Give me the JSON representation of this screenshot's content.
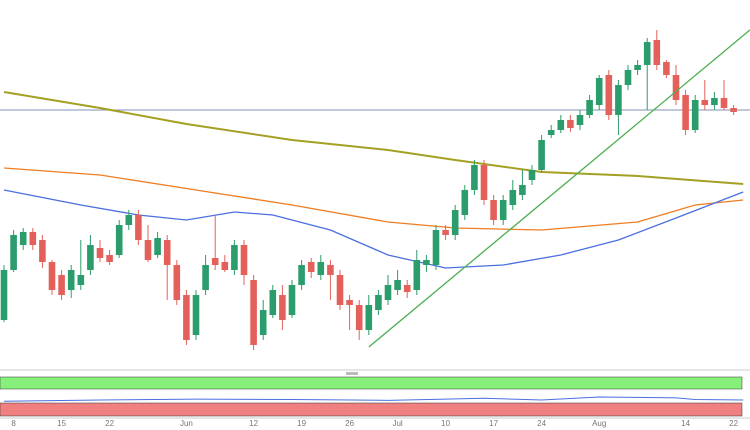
{
  "chart_data": [
    {
      "type": "candlestick",
      "categories": [
        null,
        "8",
        null,
        null,
        null,
        null,
        "15",
        null,
        null,
        null,
        null,
        "22",
        null,
        null,
        null,
        null,
        null,
        null,
        null,
        "Jun",
        null,
        null,
        null,
        null,
        null,
        null,
        "12",
        null,
        null,
        null,
        null,
        "19",
        null,
        null,
        null,
        null,
        "26",
        null,
        null,
        null,
        null,
        "Jul",
        null,
        null,
        null,
        null,
        "10",
        null,
        null,
        null,
        null,
        "17",
        null,
        null,
        null,
        null,
        "24",
        null,
        null,
        null,
        null,
        null,
        "Aug",
        null,
        null,
        null,
        null,
        null,
        null,
        null,
        null,
        "14",
        null,
        null,
        null,
        null,
        "22"
      ],
      "open": [
        50,
        100,
        125,
        138,
        130,
        108,
        95,
        80,
        85,
        100,
        122,
        115,
        115,
        145,
        155,
        130,
        115,
        130,
        105,
        75,
        35,
        80,
        112,
        108,
        100,
        125,
        90,
        35,
        55,
        75,
        55,
        85,
        108,
        95,
        105,
        95,
        70,
        65,
        40,
        60,
        70,
        80,
        85,
        80,
        105,
        105,
        140,
        135,
        155,
        180,
        205,
        170,
        150,
        165,
        175,
        190,
        200,
        235,
        240,
        250,
        245,
        255,
        265,
        295,
        255,
        285,
        300,
        305,
        330,
        308,
        295,
        275,
        240,
        270,
        265,
        272,
        262
      ],
      "high": [
        105,
        140,
        142,
        142,
        135,
        110,
        100,
        105,
        130,
        135,
        130,
        120,
        150,
        160,
        160,
        145,
        138,
        135,
        110,
        80,
        80,
        115,
        155,
        115,
        130,
        130,
        95,
        70,
        85,
        85,
        90,
        110,
        112,
        115,
        110,
        100,
        75,
        70,
        75,
        80,
        95,
        100,
        90,
        120,
        115,
        145,
        145,
        165,
        185,
        210,
        210,
        175,
        175,
        190,
        200,
        205,
        235,
        245,
        255,
        255,
        260,
        275,
        295,
        300,
        290,
        305,
        310,
        332,
        340,
        310,
        305,
        280,
        275,
        290,
        278,
        290,
        265
      ],
      "low": [
        48,
        98,
        120,
        120,
        102,
        75,
        70,
        72,
        80,
        95,
        108,
        105,
        112,
        140,
        125,
        108,
        112,
        70,
        65,
        25,
        30,
        75,
        100,
        98,
        95,
        85,
        20,
        30,
        52,
        40,
        52,
        80,
        92,
        90,
        70,
        60,
        40,
        30,
        35,
        55,
        65,
        75,
        72,
        75,
        98,
        100,
        130,
        130,
        150,
        175,
        165,
        145,
        145,
        160,
        170,
        185,
        198,
        232,
        237,
        238,
        240,
        252,
        260,
        250,
        235,
        280,
        295,
        260,
        300,
        292,
        265,
        235,
        237,
        260,
        260,
        260,
        255
      ],
      "close": [
        100,
        135,
        138,
        125,
        108,
        80,
        75,
        100,
        95,
        125,
        112,
        108,
        145,
        155,
        130,
        110,
        132,
        105,
        70,
        30,
        75,
        105,
        105,
        100,
        125,
        95,
        25,
        60,
        80,
        50,
        85,
        105,
        98,
        108,
        95,
        65,
        65,
        40,
        65,
        75,
        85,
        90,
        78,
        110,
        110,
        140,
        135,
        160,
        180,
        205,
        170,
        150,
        170,
        180,
        185,
        200,
        230,
        240,
        250,
        242,
        255,
        270,
        292,
        255,
        285,
        300,
        305,
        328,
        305,
        295,
        270,
        240,
        270,
        265,
        272,
        262,
        258
      ],
      "up_color": "#2b9d6c",
      "down_color": "#e4605a",
      "ylim": [
        0,
        370
      ],
      "series": [
        {
          "color": "#a3a024",
          "x": [
            0,
            10,
            19,
            30,
            40,
            47,
            56,
            66,
            77
          ],
          "values": [
            278,
            262,
            246,
            230,
            220,
            210,
            198,
            194,
            186
          ]
        },
        {
          "color": "#ef7d22",
          "x": [
            0,
            10,
            20,
            30,
            40,
            47,
            56,
            66,
            72,
            77
          ],
          "values": [
            202,
            195,
            180,
            165,
            148,
            142,
            140,
            148,
            165,
            170
          ]
        },
        {
          "color": "#4a6fe0",
          "x": [
            0,
            8,
            14,
            19,
            24,
            28,
            34,
            40,
            46,
            52,
            58,
            64,
            70,
            77
          ],
          "values": [
            180,
            165,
            155,
            150,
            158,
            155,
            140,
            115,
            102,
            105,
            115,
            130,
            152,
            178
          ]
        }
      ],
      "hlines": [
        {
          "value": 260,
          "color": "#7f93b3"
        }
      ],
      "trendlines": [
        {
          "x": [
            38,
            77.7
          ],
          "values": [
            23,
            340
          ],
          "color": "#4caf50"
        }
      ]
    },
    {
      "type": "line",
      "ylim": [
        0,
        100
      ],
      "color": "#4a6fe0",
      "x": [
        0,
        10,
        20,
        30,
        40,
        46,
        50,
        56,
        62,
        66,
        70,
        72,
        77
      ],
      "values": [
        40,
        43,
        45,
        44,
        42,
        45,
        47,
        43,
        50,
        49,
        48,
        44,
        43
      ]
    }
  ]
}
